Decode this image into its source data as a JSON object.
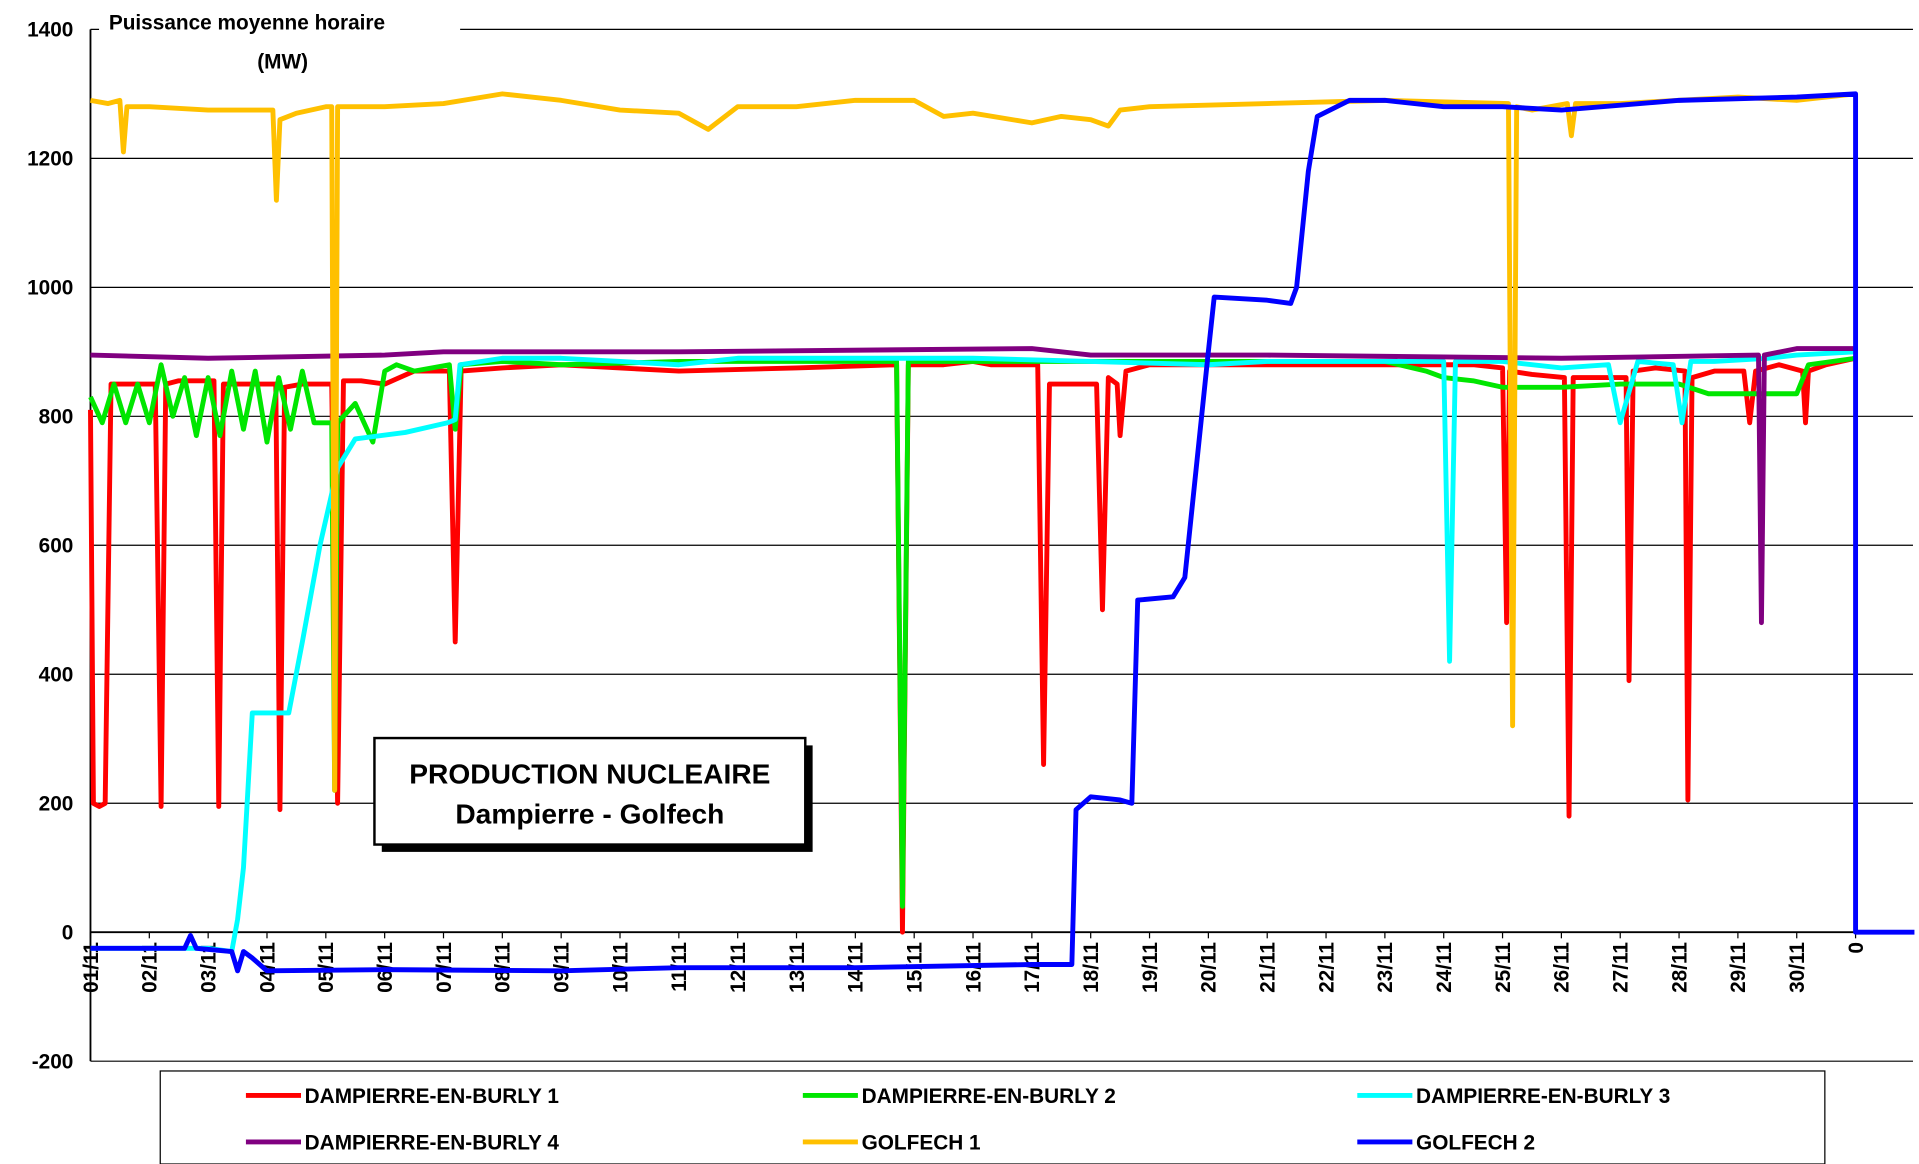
{
  "chart_data": {
    "type": "line",
    "y_label_lines": [
      "Puissance moyenne horaire",
      "(MW)"
    ],
    "annotation": [
      "PRODUCTION NUCLEAIRE",
      "Dampierre - Golfech"
    ],
    "xlim": [
      0,
      31
    ],
    "ylim": [
      -200,
      1400
    ],
    "yticks": [
      -200,
      0,
      200,
      400,
      600,
      800,
      1000,
      1200,
      1400
    ],
    "xticks": [
      {
        "value": 0,
        "label": "01/11"
      },
      {
        "value": 1,
        "label": "02/11"
      },
      {
        "value": 2,
        "label": "03/11"
      },
      {
        "value": 3,
        "label": "04/11"
      },
      {
        "value": 4,
        "label": "05/11"
      },
      {
        "value": 5,
        "label": "06/11"
      },
      {
        "value": 6,
        "label": "07/11"
      },
      {
        "value": 7,
        "label": "08/11"
      },
      {
        "value": 8,
        "label": "09/11"
      },
      {
        "value": 9,
        "label": "10/11"
      },
      {
        "value": 10,
        "label": "11/11"
      },
      {
        "value": 11,
        "label": "12/11"
      },
      {
        "value": 12,
        "label": "13/11"
      },
      {
        "value": 13,
        "label": "14/11"
      },
      {
        "value": 14,
        "label": "15/11"
      },
      {
        "value": 15,
        "label": "16/11"
      },
      {
        "value": 16,
        "label": "17/11"
      },
      {
        "value": 17,
        "label": "18/11"
      },
      {
        "value": 18,
        "label": "19/11"
      },
      {
        "value": 19,
        "label": "20/11"
      },
      {
        "value": 20,
        "label": "21/11"
      },
      {
        "value": 21,
        "label": "22/11"
      },
      {
        "value": 22,
        "label": "23/11"
      },
      {
        "value": 23,
        "label": "24/11"
      },
      {
        "value": 24,
        "label": "25/11"
      },
      {
        "value": 25,
        "label": "26/11"
      },
      {
        "value": 26,
        "label": "27/11"
      },
      {
        "value": 27,
        "label": "28/11"
      },
      {
        "value": 28,
        "label": "29/11"
      },
      {
        "value": 29,
        "label": "30/11"
      },
      {
        "value": 30,
        "label": "0"
      }
    ],
    "grid": true,
    "legend_position": "bottom",
    "series": [
      {
        "name": "DAMPIERRE-EN-BURLY 1",
        "color": "#ff0000",
        "x": [
          0,
          0.05,
          0.15,
          0.25,
          0.35,
          0.6,
          1.1,
          1.2,
          1.28,
          1.5,
          2.1,
          2.18,
          2.26,
          2.6,
          3.15,
          3.22,
          3.3,
          3.6,
          4.1,
          4.2,
          4.3,
          4.6,
          5.0,
          5.5,
          6.1,
          6.2,
          6.3,
          7,
          8,
          10,
          12,
          13.7,
          13.8,
          13.9,
          14.5,
          15,
          15.3,
          15.5,
          16.1,
          16.2,
          16.3,
          16.6,
          17.1,
          17.2,
          17.3,
          17.45,
          17.5,
          17.6,
          18,
          20,
          22,
          23.5,
          24.0,
          24.07,
          24.12,
          24.5,
          25.05,
          25.13,
          25.2,
          25.6,
          26.1,
          26.15,
          26.22,
          26.6,
          27.1,
          27.15,
          27.22,
          27.6,
          28.1,
          28.2,
          28.3,
          28.7,
          29.1,
          29.15,
          29.2,
          29.5,
          30
        ],
        "values": [
          810,
          200,
          195,
          200,
          850,
          850,
          850,
          195,
          850,
          855,
          855,
          195,
          850,
          850,
          850,
          190,
          845,
          850,
          850,
          200,
          855,
          855,
          850,
          870,
          870,
          450,
          870,
          875,
          880,
          870,
          875,
          880,
          0,
          880,
          880,
          885,
          880,
          880,
          880,
          260,
          850,
          850,
          850,
          500,
          860,
          850,
          770,
          870,
          880,
          880,
          880,
          880,
          875,
          480,
          870,
          865,
          860,
          180,
          860,
          860,
          860,
          390,
          870,
          875,
          870,
          205,
          860,
          870,
          870,
          790,
          870,
          880,
          870,
          790,
          870,
          880,
          890
        ]
      },
      {
        "name": "DAMPIERRE-EN-BURLY 2",
        "color": "#00e600",
        "x": [
          0,
          0.2,
          0.4,
          0.6,
          0.8,
          1.0,
          1.2,
          1.4,
          1.6,
          1.8,
          2.0,
          2.2,
          2.4,
          2.6,
          2.8,
          3.0,
          3.2,
          3.4,
          3.6,
          3.8,
          4.1,
          4.15,
          4.2,
          4.5,
          4.8,
          5.0,
          5.2,
          5.5,
          6.1,
          6.2,
          6.3,
          7,
          8,
          10,
          12,
          13.7,
          13.8,
          13.9,
          15,
          18,
          20,
          22,
          22.7,
          23.0,
          23.5,
          24,
          25,
          26,
          27,
          27.5,
          28,
          29,
          29.2,
          30
        ],
        "values": [
          830,
          790,
          850,
          790,
          850,
          790,
          880,
          800,
          860,
          770,
          860,
          770,
          870,
          780,
          870,
          760,
          860,
          780,
          870,
          790,
          790,
          220,
          790,
          820,
          760,
          870,
          880,
          870,
          880,
          780,
          880,
          885,
          880,
          885,
          885,
          885,
          40,
          885,
          885,
          885,
          885,
          885,
          870,
          860,
          855,
          845,
          845,
          850,
          850,
          835,
          835,
          835,
          880,
          890
        ]
      },
      {
        "name": "DAMPIERRE-EN-BURLY 3",
        "color": "#00ffff",
        "x": [
          0,
          1,
          2,
          2.4,
          2.5,
          2.6,
          2.75,
          3.0,
          3.37,
          3.6,
          3.9,
          4.2,
          4.5,
          5.35,
          6.07,
          6.2,
          6.28,
          7,
          8,
          9,
          10,
          11,
          13,
          15,
          17,
          19,
          20,
          22,
          23.0,
          23.1,
          23.2,
          24,
          25,
          25.8,
          26.0,
          26.3,
          26.9,
          27.05,
          27.2,
          27.6,
          28.5,
          29,
          30
        ],
        "values": [
          -25,
          -25,
          -25,
          -30,
          20,
          100,
          340,
          340,
          340,
          450,
          600,
          720,
          765,
          775,
          790,
          795,
          880,
          890,
          890,
          885,
          880,
          890,
          890,
          890,
          885,
          880,
          885,
          885,
          885,
          420,
          885,
          885,
          875,
          880,
          790,
          885,
          880,
          790,
          885,
          885,
          890,
          895,
          900
        ]
      },
      {
        "name": "DAMPIERRE-EN-BURLY 4",
        "color": "#800080",
        "x": [
          0,
          2,
          5,
          6,
          10,
          16,
          17,
          20,
          25,
          28.35,
          28.4,
          28.45,
          29,
          30
        ],
        "values": [
          895,
          890,
          895,
          900,
          900,
          905,
          895,
          895,
          890,
          895,
          480,
          895,
          905,
          905
        ]
      },
      {
        "name": "GOLFECH 1",
        "color": "#ffc000",
        "x": [
          0,
          0.3,
          0.5,
          0.56,
          0.62,
          1,
          2,
          3.1,
          3.16,
          3.22,
          3.5,
          4.0,
          4.1,
          4.15,
          4.2,
          4.3,
          5,
          6,
          7,
          8,
          9,
          10,
          10.5,
          11,
          12,
          13,
          14,
          14.5,
          15,
          16,
          16.5,
          17,
          17.3,
          17.5,
          18,
          20,
          22,
          24.1,
          24.17,
          24.24,
          24.5,
          25.1,
          25.17,
          25.24,
          26,
          28,
          29,
          30
        ],
        "values": [
          1290,
          1285,
          1290,
          1210,
          1280,
          1280,
          1275,
          1275,
          1135,
          1260,
          1270,
          1280,
          1280,
          220,
          1280,
          1280,
          1280,
          1285,
          1300,
          1290,
          1275,
          1270,
          1245,
          1280,
          1280,
          1290,
          1290,
          1265,
          1270,
          1255,
          1265,
          1260,
          1250,
          1275,
          1280,
          1285,
          1290,
          1285,
          320,
          1280,
          1275,
          1285,
          1235,
          1285,
          1285,
          1295,
          1290,
          1300
        ]
      },
      {
        "name": "GOLFECH 2",
        "color": "#0000ff",
        "x": [
          0,
          1,
          1.6,
          1.7,
          1.8,
          2.4,
          2.5,
          2.6,
          2.75,
          3.0,
          5,
          8,
          10,
          13,
          16,
          16.68,
          16.75,
          17,
          17.5,
          17.7,
          17.8,
          18.4,
          18.6,
          19.0,
          19.1,
          20,
          20.4,
          20.5,
          20.7,
          20.85,
          21.4,
          22,
          23,
          24,
          25,
          27,
          29,
          30,
          30,
          31
        ],
        "values": [
          -25,
          -25,
          -25,
          -5,
          -25,
          -30,
          -60,
          -30,
          -40,
          -60,
          -58,
          -60,
          -55,
          -55,
          -50,
          -50,
          190,
          210,
          205,
          200,
          515,
          520,
          550,
          900,
          985,
          980,
          975,
          1000,
          1180,
          1265,
          1290,
          1290,
          1280,
          1280,
          1275,
          1290,
          1295,
          1300,
          0,
          0
        ]
      }
    ]
  }
}
